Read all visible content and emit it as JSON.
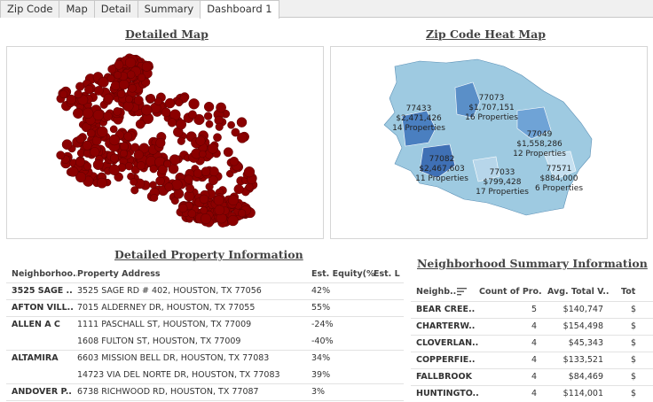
{
  "tabs": [
    "Zip Code",
    "Map",
    "Detail",
    "Summary",
    "Dashboard 1"
  ],
  "active_tab": 4,
  "detailed_map": {
    "title": "Detailed Map",
    "dot_color": "#8b0000"
  },
  "heat_map": {
    "title": "Zip Code Heat Map",
    "labels": [
      {
        "zip": "77073",
        "value": "$1,707,151",
        "props": "16 Properties"
      },
      {
        "zip": "77433",
        "value": "$2,471,426",
        "props": "14 Properties"
      },
      {
        "zip": "77049",
        "value": "$1,558,286",
        "props": "12 Properties"
      },
      {
        "zip": "77082",
        "value": "$2,467,603",
        "props": "11 Properties"
      },
      {
        "zip": "77571",
        "value": "$884,000",
        "props": "6 Properties"
      },
      {
        "zip": "77033",
        "value": "$799,428",
        "props": "17 Properties"
      }
    ]
  },
  "property_info": {
    "title": "Detailed Property Information",
    "headers": [
      "Neighborhoo..",
      "Property Address",
      "Est. Equity(%)",
      "Est. L"
    ],
    "rows": [
      {
        "n": "3525 SAGE ..",
        "a": "3525 SAGE RD # 402, HOUSTON, TX 77056",
        "e": "42%"
      },
      {
        "n": "AFTON VILL..",
        "a": "7015 ALDERNEY DR, HOUSTON, TX 77055",
        "e": "55%"
      },
      {
        "n": "ALLEN A C",
        "a": "1111 PASCHALL ST, HOUSTON, TX 77009",
        "e": "-24%"
      },
      {
        "n": "",
        "a": "1608 FULTON ST, HOUSTON, TX 77009",
        "e": "-40%"
      },
      {
        "n": "ALTAMIRA",
        "a": "6603 MISSION BELL DR, HOUSTON, TX 77083",
        "e": "34%"
      },
      {
        "n": "",
        "a": "14723 VIA DEL NORTE DR, HOUSTON, TX 77083",
        "e": "39%"
      },
      {
        "n": "ANDOVER P..",
        "a": "6738 RICHWOOD RD, HOUSTON, TX 77087",
        "e": "3%"
      }
    ]
  },
  "neighborhood_summary": {
    "title": "Neighborhood Summary Information",
    "headers": [
      "Neighb..",
      "Count of Pro..",
      "Avg. Total V..",
      "Tot"
    ],
    "rows": [
      {
        "n": "BEAR CREE..",
        "c": "5",
        "v": "$140,747",
        "t": "$"
      },
      {
        "n": "CHARTERW..",
        "c": "4",
        "v": "$154,498",
        "t": "$"
      },
      {
        "n": "CLOVERLAN..",
        "c": "4",
        "v": "$45,343",
        "t": "$"
      },
      {
        "n": "COPPERFIE..",
        "c": "4",
        "v": "$133,521",
        "t": "$"
      },
      {
        "n": "FALLBROOK",
        "c": "4",
        "v": "$84,469",
        "t": "$"
      },
      {
        "n": "HUNTINGTO..",
        "c": "4",
        "v": "$114,001",
        "t": "$"
      }
    ]
  }
}
